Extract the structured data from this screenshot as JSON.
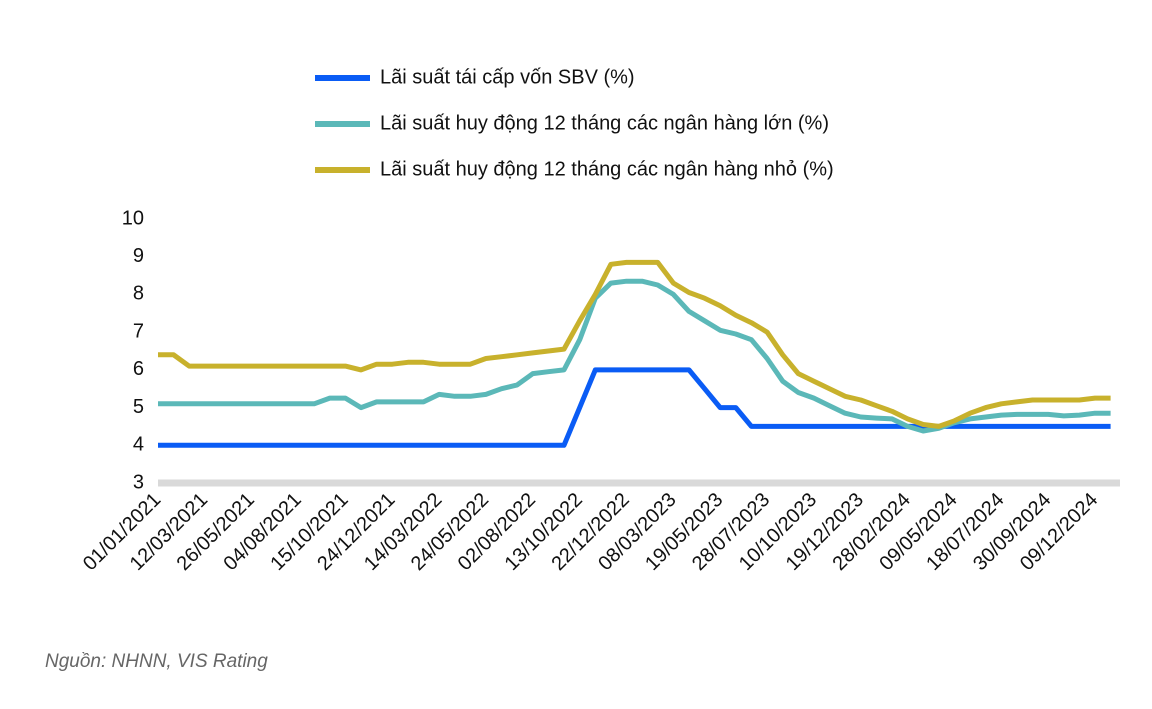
{
  "chart_data": {
    "type": "line",
    "source": "Nguồn: NHNN, VIS Rating",
    "categories": [
      "01/01/2021",
      null,
      null,
      "12/03/2021",
      null,
      null,
      "26/05/2021",
      null,
      null,
      "04/08/2021",
      null,
      null,
      "15/10/2021",
      null,
      null,
      "24/12/2021",
      null,
      null,
      "14/03/2022",
      null,
      null,
      "24/05/2022",
      null,
      null,
      "02/08/2022",
      null,
      null,
      "13/10/2022",
      null,
      null,
      "22/12/2022",
      null,
      null,
      "08/03/2023",
      null,
      null,
      "19/05/2023",
      null,
      null,
      "28/07/2023",
      null,
      null,
      "10/10/2023",
      null,
      null,
      "19/12/2023",
      null,
      null,
      "28/02/2024",
      null,
      null,
      "09/05/2024",
      null,
      null,
      "18/07/2024",
      null,
      null,
      "30/09/2024",
      null,
      null,
      "09/12/2024",
      null
    ],
    "series": [
      {
        "name": "Lãi suất tái cấp vốn SBV (%)",
        "color": "#0a5cf5",
        "values": [
          4,
          4,
          4,
          4,
          4,
          4,
          4,
          4,
          4,
          4,
          4,
          4,
          4,
          4,
          4,
          4,
          4,
          4,
          4,
          4,
          4,
          4,
          4,
          4,
          4,
          4,
          4,
          5,
          6,
          6,
          6,
          6,
          6,
          6,
          6,
          5.5,
          5,
          5,
          4.5,
          4.5,
          4.5,
          4.5,
          4.5,
          4.5,
          4.5,
          4.5,
          4.5,
          4.5,
          4.5,
          4.5,
          4.5,
          4.5,
          4.5,
          4.5,
          4.5,
          4.5,
          4.5,
          4.5,
          4.5,
          4.5,
          4.5,
          4.5
        ]
      },
      {
        "name": "Lãi suất huy động 12 tháng các ngân hàng lớn (%)",
        "color": "#5bb8b8",
        "values": [
          5.1,
          5.1,
          5.1,
          5.1,
          5.1,
          5.1,
          5.1,
          5.1,
          5.1,
          5.1,
          5.1,
          5.25,
          5.25,
          5.0,
          5.15,
          5.15,
          5.15,
          5.15,
          5.35,
          5.3,
          5.3,
          5.35,
          5.5,
          5.6,
          5.9,
          5.95,
          6.0,
          6.8,
          7.9,
          8.3,
          8.35,
          8.35,
          8.25,
          8.0,
          7.55,
          7.3,
          7.05,
          6.95,
          6.8,
          6.3,
          5.7,
          5.4,
          5.25,
          5.05,
          4.85,
          4.75,
          4.72,
          4.7,
          4.5,
          4.38,
          4.45,
          4.6,
          4.7,
          4.75,
          4.8,
          4.82,
          4.82,
          4.82,
          4.78,
          4.8,
          4.85,
          4.85
        ]
      },
      {
        "name": "Lãi suất huy động 12 tháng các ngân hàng nhỏ (%)",
        "color": "#c8b12c",
        "values": [
          6.4,
          6.4,
          6.1,
          6.1,
          6.1,
          6.1,
          6.1,
          6.1,
          6.1,
          6.1,
          6.1,
          6.1,
          6.1,
          6.0,
          6.15,
          6.15,
          6.2,
          6.2,
          6.15,
          6.15,
          6.15,
          6.3,
          6.35,
          6.4,
          6.45,
          6.5,
          6.55,
          7.3,
          8.0,
          8.8,
          8.85,
          8.85,
          8.85,
          8.3,
          8.05,
          7.9,
          7.7,
          7.45,
          7.25,
          7.0,
          6.4,
          5.9,
          5.7,
          5.5,
          5.3,
          5.2,
          5.05,
          4.9,
          4.7,
          4.55,
          4.5,
          4.65,
          4.85,
          5.0,
          5.1,
          5.15,
          5.2,
          5.2,
          5.2,
          5.2,
          5.25,
          5.25
        ]
      }
    ],
    "ylim": [
      3,
      10
    ],
    "yticks": [
      3,
      4,
      5,
      6,
      7,
      8,
      9,
      10
    ],
    "grid": false
  }
}
